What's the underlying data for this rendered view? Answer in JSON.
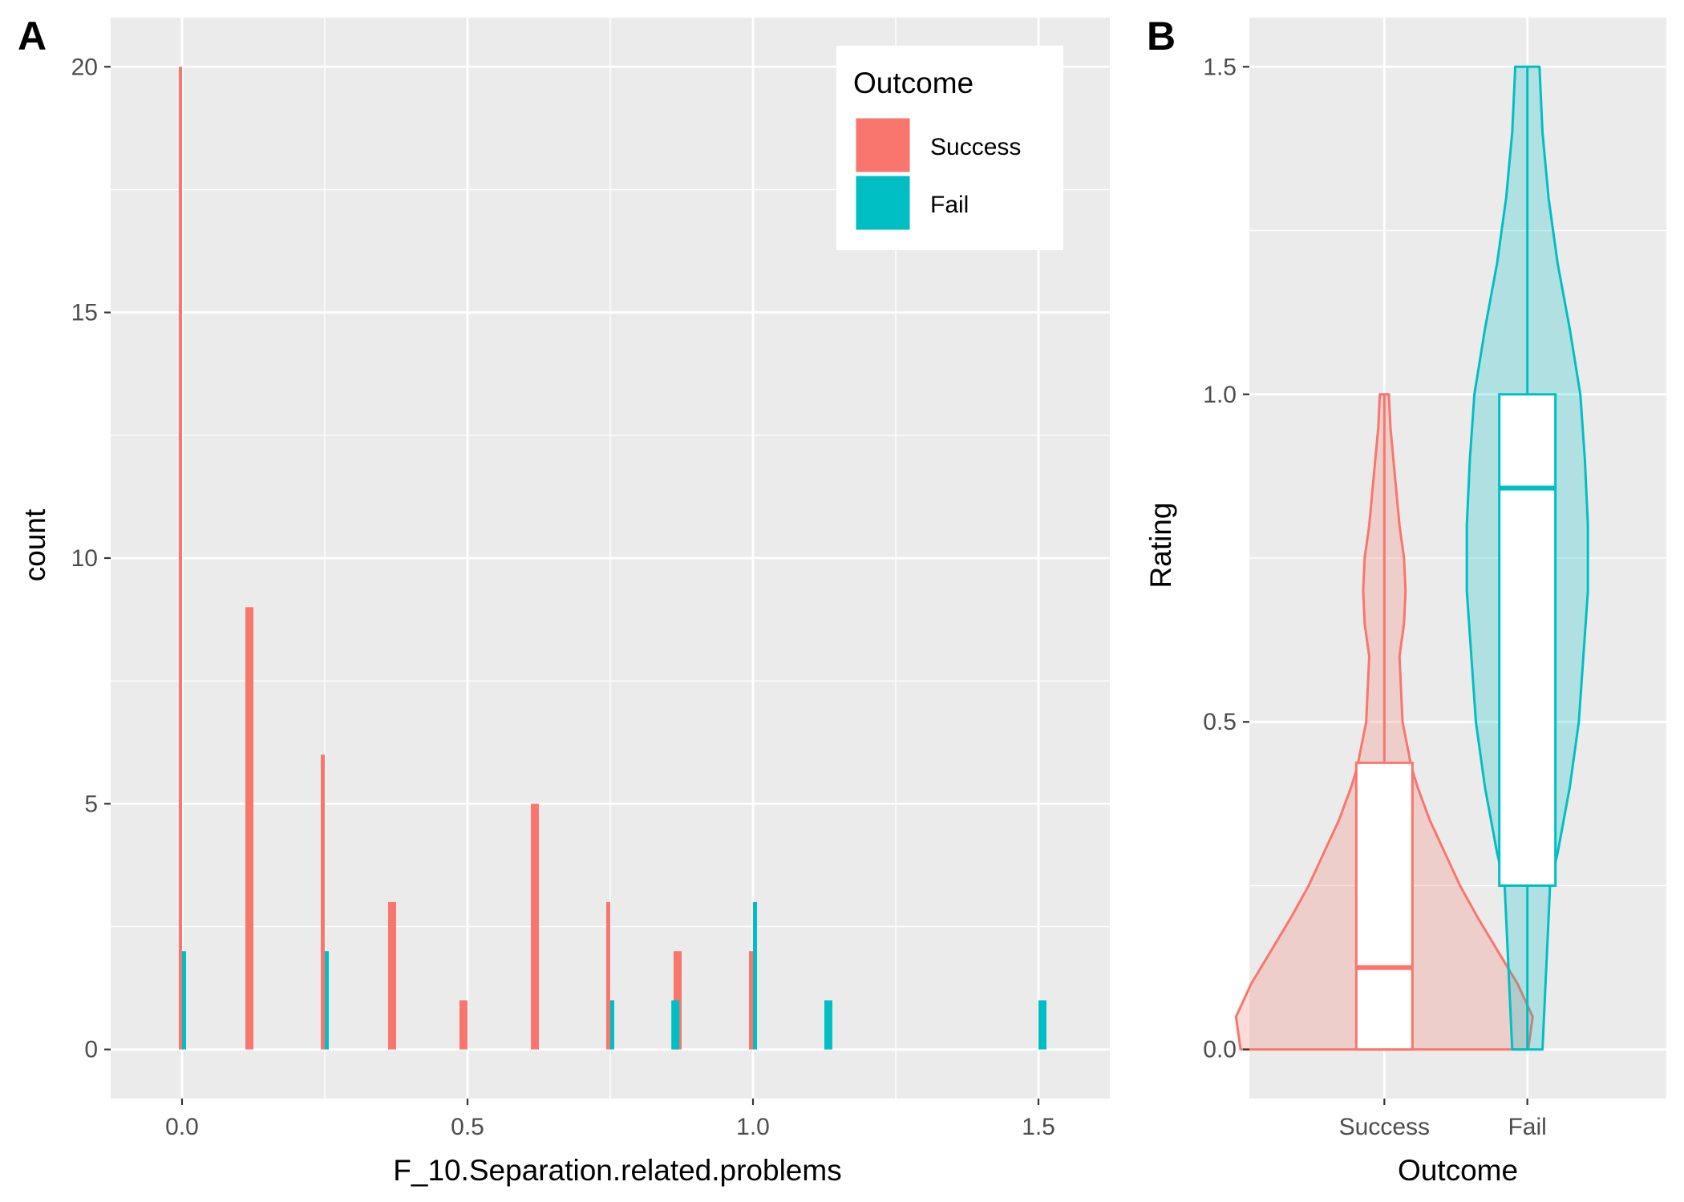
{
  "panels": {
    "a_letter": "A",
    "b_letter": "B"
  },
  "colors": {
    "success": "#F8766D",
    "fail": "#00BFC4",
    "panel_bg": "#EBEBEB",
    "grid": "#FFFFFF"
  },
  "chart_data": [
    {
      "type": "bar",
      "subtype": "histogram",
      "xlabel": "F_10.Separation.related.problems",
      "ylabel": "count",
      "xlim": [
        -0.125,
        1.625
      ],
      "ylim": [
        -1,
        21
      ],
      "xticks": [
        0.0,
        0.5,
        1.0,
        1.5
      ],
      "xtick_labels": [
        "0.0",
        "0.5",
        "1.0",
        "1.5"
      ],
      "yticks": [
        0,
        5,
        10,
        15,
        20
      ],
      "ytick_labels": [
        "0",
        "5",
        "10",
        "15",
        "20"
      ],
      "grid": true,
      "legend": {
        "title": "Outcome",
        "position": "top-right",
        "entries": [
          "Success",
          "Fail"
        ]
      },
      "series": [
        {
          "name": "Success",
          "x": [
            0.0,
            0.125,
            0.25,
            0.375,
            0.5,
            0.625,
            0.75,
            0.875,
            1.0
          ],
          "values": [
            20,
            9,
            6,
            3,
            1,
            5,
            3,
            2,
            2
          ]
        },
        {
          "name": "Fail",
          "x": [
            0.0,
            0.25,
            0.75,
            0.857,
            1.0,
            1.125,
            1.5
          ],
          "values": [
            2,
            2,
            1,
            1,
            3,
            1,
            1
          ]
        }
      ]
    },
    {
      "type": "violin",
      "subtype": "violin with boxplot",
      "xlabel": "Outcome",
      "ylabel": "Rating",
      "categories": [
        "Success",
        "Fail"
      ],
      "ylim": [
        -0.075,
        1.575
      ],
      "yticks": [
        0.0,
        0.5,
        1.0,
        1.5
      ],
      "ytick_labels": [
        "0.0",
        "0.5",
        "1.0",
        "1.5"
      ],
      "grid": true,
      "box": [
        {
          "name": "Success",
          "min": 0.0,
          "q1": 0.0,
          "median": 0.125,
          "q3": 0.4375,
          "max": 1.0
        },
        {
          "name": "Fail",
          "min": 0.0,
          "q1": 0.25,
          "median": 0.857,
          "q3": 1.0,
          "max": 1.5
        }
      ],
      "violin": [
        {
          "name": "Success",
          "y": [
            0.0,
            0.05,
            0.1,
            0.15,
            0.2,
            0.25,
            0.3,
            0.35,
            0.4,
            0.43,
            0.5,
            0.6,
            0.65,
            0.7,
            0.75,
            0.8,
            0.85,
            0.9,
            0.95,
            1.0
          ],
          "half_width": [
            0.95,
            0.98,
            0.88,
            0.75,
            0.62,
            0.5,
            0.4,
            0.3,
            0.22,
            0.18,
            0.12,
            0.1,
            0.13,
            0.14,
            0.13,
            0.1,
            0.08,
            0.06,
            0.04,
            0.03
          ]
        },
        {
          "name": "Fail",
          "y": [
            0.0,
            0.1,
            0.2,
            0.25,
            0.3,
            0.4,
            0.5,
            0.6,
            0.7,
            0.8,
            0.9,
            1.0,
            1.1,
            1.2,
            1.3,
            1.4,
            1.5
          ],
          "half_width": [
            0.1,
            0.12,
            0.14,
            0.15,
            0.2,
            0.28,
            0.34,
            0.37,
            0.4,
            0.4,
            0.38,
            0.35,
            0.28,
            0.2,
            0.14,
            0.1,
            0.08
          ]
        }
      ]
    }
  ]
}
